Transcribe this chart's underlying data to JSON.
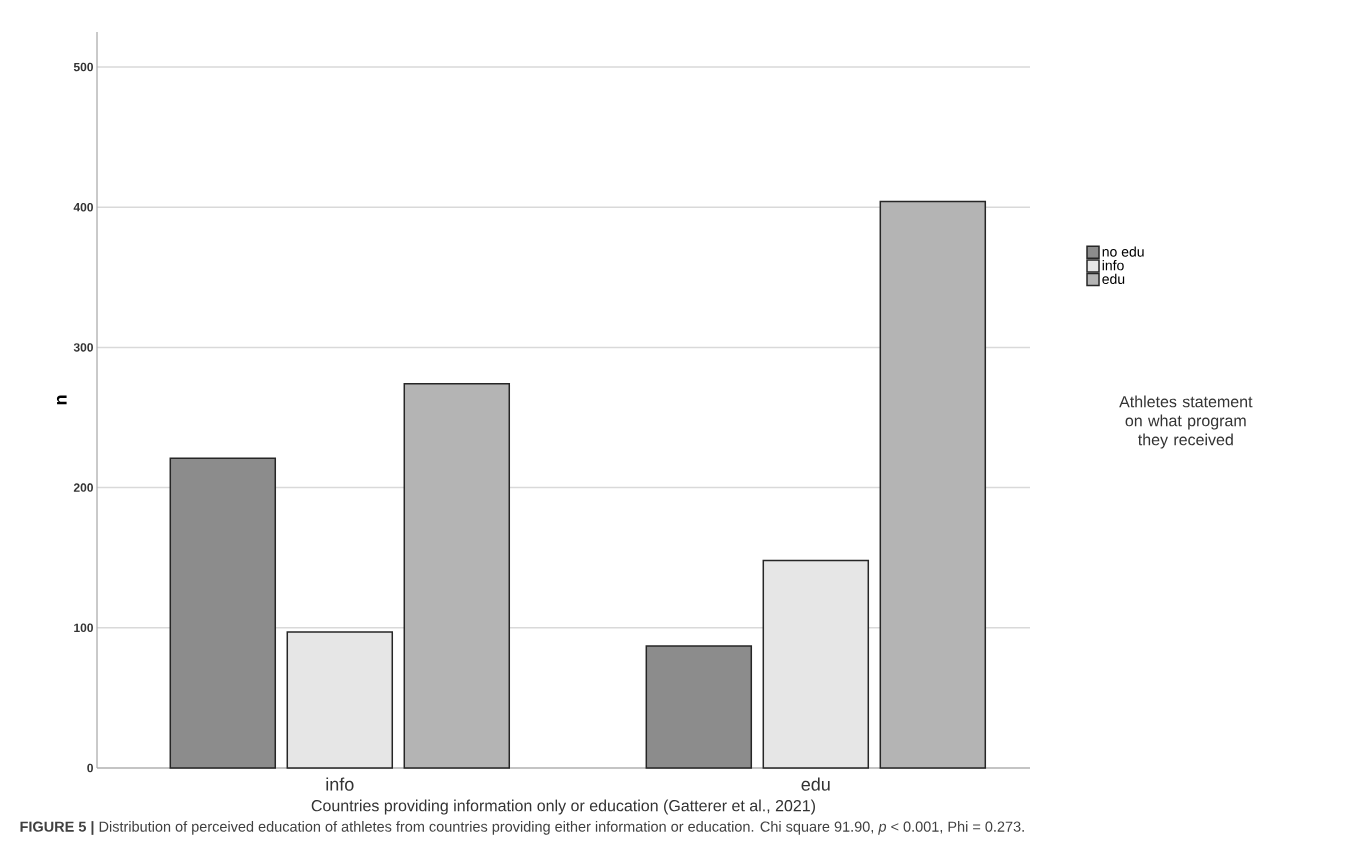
{
  "chart_data": {
    "type": "bar",
    "categories": [
      "info",
      "edu"
    ],
    "series": [
      {
        "name": "no edu",
        "color": "#8c8c8c",
        "values": [
          221,
          87
        ]
      },
      {
        "name": "info",
        "color": "#e6e6e6",
        "values": [
          97,
          148
        ]
      },
      {
        "name": "edu",
        "color": "#b4b4b4",
        "values": [
          274,
          404
        ]
      }
    ],
    "ylabel": "n",
    "xlabel": "Countries providing information only or education (Gatterer et al., 2021)",
    "legend_title": "Athletes statement on what program they received",
    "annotations": [
      "**FIGURE 5 |** Distribution of perceived education of athletes from countries providing either information or education. Chi square 91.90, *p* < 0.001, Phi = 0.273."
    ],
    "ylim": [
      0,
      525
    ],
    "yticks": [
      0,
      100,
      200,
      300,
      400,
      500
    ],
    "grid": "y",
    "legend": "right"
  }
}
